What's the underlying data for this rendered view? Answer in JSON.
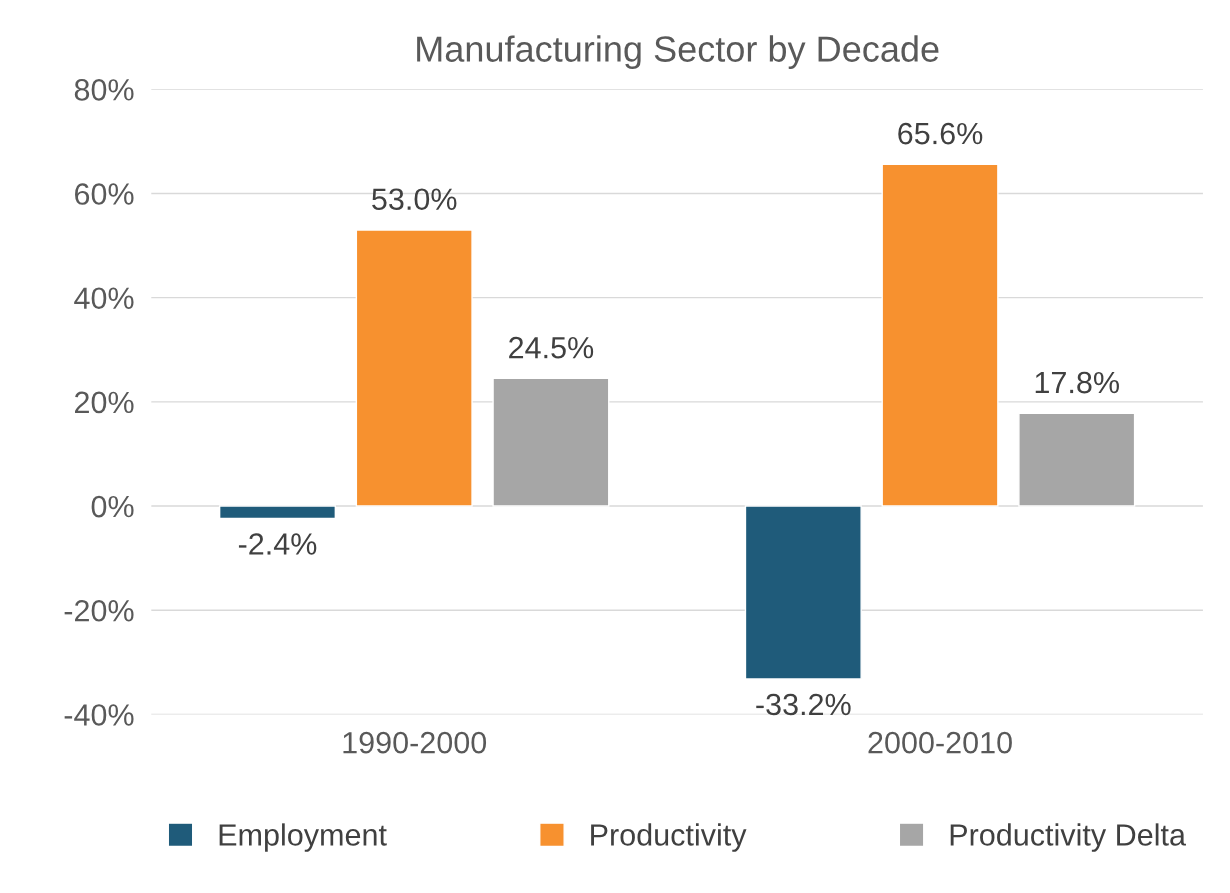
{
  "chart_data": {
    "type": "bar",
    "title": "Manufacturing Sector by Decade",
    "categories": [
      "1990-2000",
      "2000-2010"
    ],
    "series": [
      {
        "name": "Employment",
        "color": "#1f5b7a",
        "values": [
          -2.4,
          -33.2
        ],
        "value_labels": [
          "-2.4%",
          "-33.2%"
        ]
      },
      {
        "name": "Productivity",
        "color": "#f7912f",
        "values": [
          53.0,
          65.6
        ],
        "value_labels": [
          "53.0%",
          "65.6%"
        ]
      },
      {
        "name": "Productivity Delta",
        "color": "#a6a6a6",
        "values": [
          24.5,
          17.8
        ],
        "value_labels": [
          "24.5%",
          "17.8%"
        ]
      }
    ],
    "ylim": [
      -40,
      80
    ],
    "yticks": [
      {
        "value": -40,
        "label": "-40%"
      },
      {
        "value": -20,
        "label": "-20%"
      },
      {
        "value": 0,
        "label": "0%"
      },
      {
        "value": 20,
        "label": "20%"
      },
      {
        "value": 40,
        "label": "40%"
      },
      {
        "value": 60,
        "label": "60%"
      },
      {
        "value": 80,
        "label": "80%"
      }
    ],
    "grid": "y",
    "legend": "bottom"
  }
}
